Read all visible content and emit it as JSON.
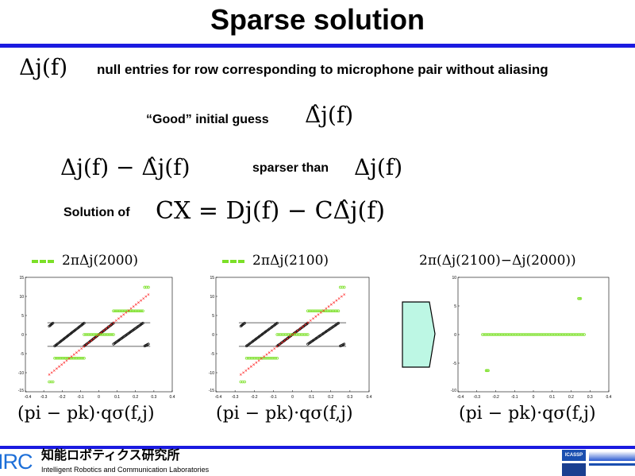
{
  "title": "Sparse solution",
  "line1": {
    "math": "Δj(f)",
    "text": "null entries for row corresponding to microphone pair without aliasing"
  },
  "line2": {
    "text": "“Good” initial guess",
    "math": "Δ̂j(f)"
  },
  "line3": {
    "math_left": "Δj(f) − Δ̂j(f)",
    "text": "sparser than",
    "math_right": "Δj(f)"
  },
  "line4": {
    "text": "Solution of",
    "math": "CX = Dj(f) − CΔ̂j(f)"
  },
  "footer": {
    "irc": "IRC",
    "jp": "知能ロボティクス研究所",
    "en": "Intelligent Robotics and Communication Laboratories",
    "logo_text": "ICASSP"
  },
  "colors": {
    "accent_bar": "#1a1ae0",
    "green": "#7be027",
    "red": "#ff2020",
    "arrow_fill": "#bdf7e4"
  },
  "plots": [
    {
      "legend": "2πΔj(2000)",
      "xlabel": "(pi − pk)·qσ(f,j)",
      "xlim": [
        -0.4,
        0.4
      ],
      "ylim": [
        -15,
        15
      ],
      "xticks": [
        "-0.4",
        "-0.3",
        "-0.2",
        "-0.1",
        "0",
        "0.1",
        "0.2",
        "0.3",
        "0.4"
      ],
      "yticks": [
        "-15",
        "-10",
        "-5",
        "0",
        "5",
        "10",
        "15"
      ],
      "band": [
        -3.1,
        3.1
      ],
      "red": [
        [
          -0.27,
          -10.5
        ],
        [
          0.27,
          10.5
        ]
      ],
      "black": [
        [
          [
            -0.27,
            2.2
          ],
          [
            -0.25,
            3
          ]
        ],
        [
          [
            -0.24,
            -3
          ],
          [
            -0.08,
            3
          ]
        ],
        [
          [
            -0.08,
            -3
          ],
          [
            0.08,
            3
          ]
        ],
        [
          [
            0.08,
            -2.5
          ],
          [
            0.24,
            3
          ]
        ],
        [
          [
            0.25,
            -3
          ],
          [
            0.27,
            -2.5
          ]
        ]
      ],
      "green": [
        [
          -0.27,
          -0.25,
          -12.4
        ],
        [
          -0.24,
          -0.08,
          -6.2
        ],
        [
          -0.08,
          0.08,
          0
        ],
        [
          0.08,
          0.24,
          6.2
        ],
        [
          0.25,
          0.27,
          12.4
        ]
      ]
    },
    {
      "legend": "2πΔj(2100)",
      "xlabel": "(pi − pk)·qσ(f,j)",
      "xlim": [
        -0.4,
        0.4
      ],
      "ylim": [
        -15,
        15
      ],
      "xticks": [
        "-0.4",
        "-0.3",
        "-0.2",
        "-0.1",
        "0",
        "0.1",
        "0.2",
        "0.3",
        "0.4"
      ],
      "yticks": [
        "-15",
        "-10",
        "-5",
        "0",
        "5",
        "10",
        "15"
      ],
      "band": [
        -3.1,
        3.1
      ],
      "red": [
        [
          -0.27,
          -10.5
        ],
        [
          0.27,
          10.5
        ]
      ],
      "black": [
        [
          [
            -0.27,
            2.2
          ],
          [
            -0.25,
            3
          ]
        ],
        [
          [
            -0.24,
            -3
          ],
          [
            -0.08,
            3
          ]
        ],
        [
          [
            -0.08,
            -3
          ],
          [
            0.08,
            3
          ]
        ],
        [
          [
            0.08,
            -2.5
          ],
          [
            0.24,
            3
          ]
        ],
        [
          [
            0.25,
            -3
          ],
          [
            0.27,
            -2.5
          ]
        ]
      ],
      "green": [
        [
          -0.27,
          -0.25,
          -12.4
        ],
        [
          -0.24,
          -0.08,
          -6.2
        ],
        [
          -0.08,
          0.08,
          0
        ],
        [
          0.08,
          0.24,
          6.2
        ],
        [
          0.25,
          0.27,
          12.4
        ]
      ]
    },
    {
      "legend": "2π(Δj(2100)−Δj(2000))",
      "xlabel": "(pi − pk)·qσ(f,j)",
      "xlim": [
        -0.4,
        0.4
      ],
      "ylim": [
        -10,
        10
      ],
      "xticks": [
        "-0.4",
        "-0.3",
        "-0.2",
        "-0.1",
        "0",
        "0.1",
        "0.2",
        "0.3",
        "0.4"
      ],
      "yticks": [
        "-10",
        "-5",
        "0",
        "5",
        "10"
      ],
      "band": null,
      "red": null,
      "black": [],
      "green": [
        [
          -0.25,
          -0.24,
          -6.3
        ],
        [
          -0.27,
          0.27,
          0
        ],
        [
          0.24,
          0.25,
          6.3
        ]
      ]
    }
  ]
}
